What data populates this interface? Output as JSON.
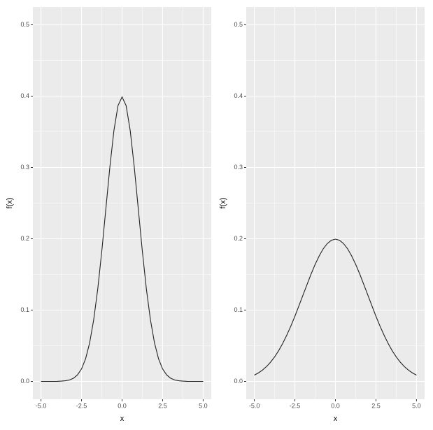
{
  "chart_data": [
    {
      "type": "line",
      "xlabel": "x",
      "ylabel": "f(x)",
      "color": "#222222",
      "grid": true,
      "xlim": [
        -5.5,
        5.5
      ],
      "ylim": [
        -0.025,
        0.525
      ],
      "xticks": [
        {
          "value": -5,
          "label": "-5.0"
        },
        -2.5,
        {
          "value": 0,
          "label": "0.0"
        },
        2.5,
        {
          "value": 5,
          "label": "5.0"
        }
      ],
      "yticks": [
        {
          "value": 0,
          "label": "0.0"
        },
        0.1,
        0.2,
        0.3,
        0.4,
        0.5
      ],
      "x": [
        -5,
        -4.75,
        -4.5,
        -4.25,
        -4,
        -3.75,
        -3.5,
        -3.25,
        -3,
        -2.75,
        -2.5,
        -2.25,
        -2,
        -1.75,
        -1.5,
        -1.25,
        -1,
        -0.75,
        -0.5,
        -0.25,
        0,
        0.25,
        0.5,
        0.75,
        1,
        1.25,
        1.5,
        1.75,
        2,
        2.25,
        2.5,
        2.75,
        3,
        3.25,
        3.5,
        3.75,
        4,
        4.25,
        4.5,
        4.75,
        5
      ],
      "values": [
        0,
        0,
        0,
        0,
        0.0001,
        0.0004,
        0.0009,
        0.002,
        0.0044,
        0.0091,
        0.0175,
        0.0317,
        0.054,
        0.0863,
        0.1295,
        0.1826,
        0.242,
        0.3011,
        0.3521,
        0.3867,
        0.3989,
        0.3867,
        0.3521,
        0.3011,
        0.242,
        0.1826,
        0.1295,
        0.0863,
        0.054,
        0.0317,
        0.0175,
        0.0091,
        0.0044,
        0.002,
        0.0009,
        0.0004,
        0.0001,
        0,
        0,
        0,
        0
      ]
    },
    {
      "type": "line",
      "xlabel": "x",
      "ylabel": "f(x)",
      "color": "#222222",
      "grid": true,
      "xlim": [
        -5.5,
        5.5
      ],
      "ylim": [
        -0.025,
        0.525
      ],
      "xticks": [
        {
          "value": -5,
          "label": "-5.0"
        },
        -2.5,
        {
          "value": 0,
          "label": "0.0"
        },
        2.5,
        {
          "value": 5,
          "label": "5.0"
        }
      ],
      "yticks": [
        {
          "value": 0,
          "label": "0.0"
        },
        0.1,
        0.2,
        0.3,
        0.4,
        0.5
      ],
      "x": [
        -5,
        -4.75,
        -4.5,
        -4.25,
        -4,
        -3.75,
        -3.5,
        -3.25,
        -3,
        -2.75,
        -2.5,
        -2.25,
        -2,
        -1.75,
        -1.5,
        -1.25,
        -1,
        -0.75,
        -0.5,
        -0.25,
        0,
        0.25,
        0.5,
        0.75,
        1,
        1.25,
        1.5,
        1.75,
        2,
        2.25,
        2.5,
        2.75,
        3,
        3.25,
        3.5,
        3.75,
        4,
        4.25,
        4.5,
        4.75,
        5
      ],
      "values": [
        0.0088,
        0.0119,
        0.0159,
        0.0208,
        0.027,
        0.0344,
        0.0431,
        0.0533,
        0.0648,
        0.0775,
        0.0913,
        0.1061,
        0.121,
        0.1358,
        0.1506,
        0.1641,
        0.176,
        0.186,
        0.1933,
        0.1979,
        0.1995,
        0.1979,
        0.1933,
        0.186,
        0.176,
        0.1641,
        0.1506,
        0.1358,
        0.121,
        0.1061,
        0.0913,
        0.0775,
        0.0648,
        0.0533,
        0.0431,
        0.0344,
        0.027,
        0.0208,
        0.0159,
        0.0119,
        0.0088
      ]
    }
  ]
}
